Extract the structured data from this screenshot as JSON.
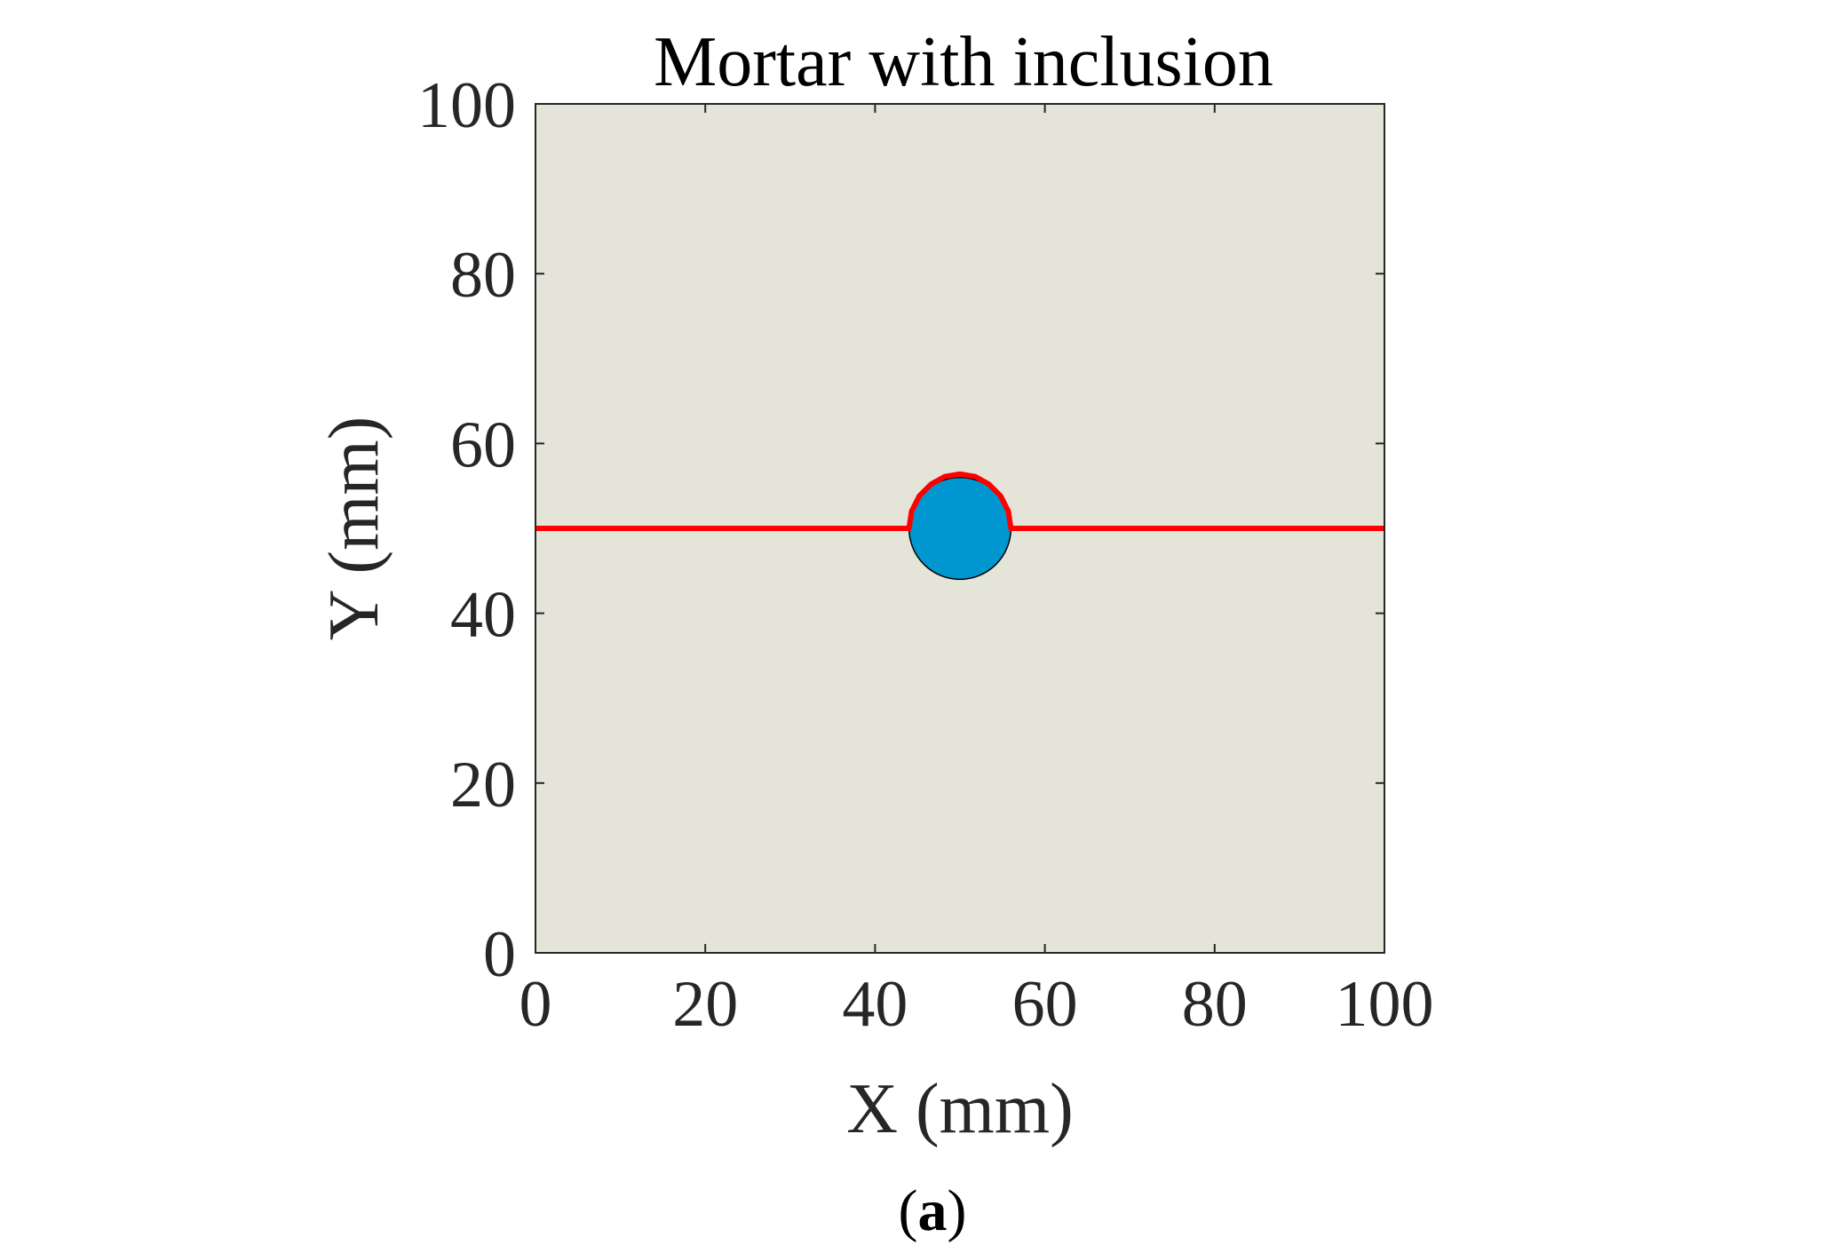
{
  "chart_data": {
    "type": "scatter",
    "title": "Mortar with inclusion",
    "xlabel": "X (mm)",
    "ylabel": "Y (mm)",
    "xlim": [
      0,
      100
    ],
    "ylim": [
      0,
      100
    ],
    "xticks": [
      "0",
      "20",
      "40",
      "60",
      "80",
      "100"
    ],
    "yticks": [
      "0",
      "20",
      "40",
      "60",
      "80",
      "100"
    ],
    "grid": false,
    "inclusion": {
      "center": [
        50,
        50
      ],
      "radius": 6,
      "color": "#0097d0"
    },
    "crack_path": {
      "color": "#ff0000",
      "points": [
        [
          0,
          50
        ],
        [
          44,
          50
        ],
        [
          44.3,
          52
        ],
        [
          45.2,
          53.8
        ],
        [
          46.6,
          55.2
        ],
        [
          48.2,
          56.1
        ],
        [
          50,
          56.4
        ],
        [
          51.8,
          56.1
        ],
        [
          53.4,
          55.2
        ],
        [
          54.8,
          53.8
        ],
        [
          55.7,
          52
        ],
        [
          56,
          50
        ],
        [
          100,
          50
        ]
      ]
    },
    "background_color": "#e4e4d9"
  },
  "panel_label": {
    "open": "(",
    "letter": "a",
    "close": ")"
  }
}
